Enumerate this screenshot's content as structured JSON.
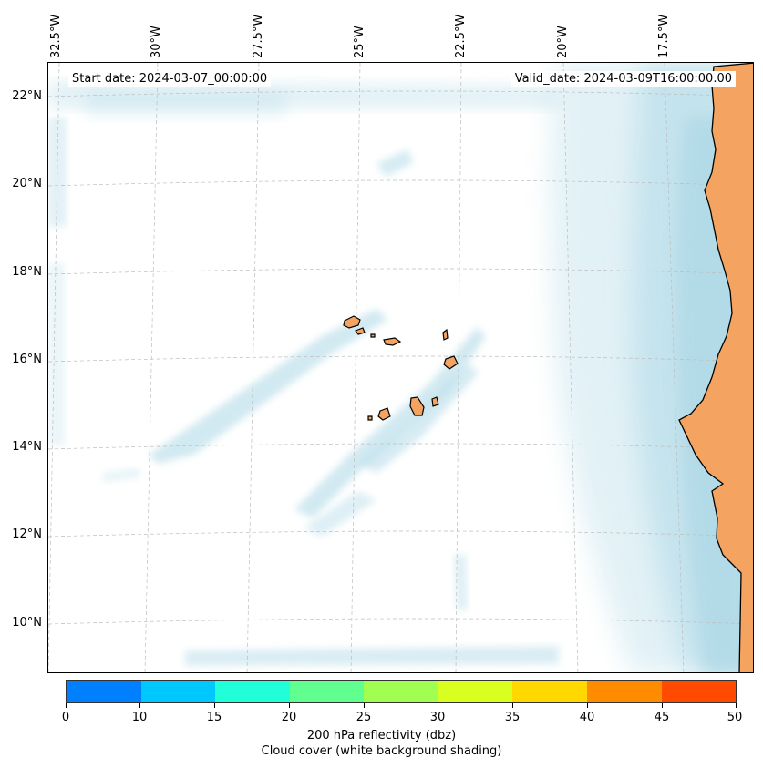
{
  "map": {
    "start_date": "Start date: 2024-03-07_00:00:00",
    "valid_date": "Valid_date: 2024-03-09T16:00:00.00",
    "lon_labels": [
      "32.5°W",
      "30°W",
      "27.5°W",
      "25°W",
      "22.5°W",
      "20°W",
      "17.5°W"
    ],
    "lat_labels": [
      "22°N",
      "20°N",
      "18°N",
      "16°N",
      "14°N",
      "12°N",
      "10°N"
    ],
    "land_color": "#f4a460",
    "cloud_color": "#add8e6",
    "coastline_color": "#000000",
    "gridlines": "dashed"
  },
  "colorbar": {
    "ticks": [
      "0",
      "10",
      "15",
      "20",
      "25",
      "30",
      "35",
      "40",
      "45",
      "50"
    ],
    "colors": [
      "#0080ff",
      "#00c8ff",
      "#20ffd8",
      "#60ff90",
      "#a0ff50",
      "#d8ff20",
      "#ffd800",
      "#ff8c00",
      "#ff4a00"
    ],
    "label_line1": "200 hPa reflectivity (dbz)",
    "label_line2": "Cloud cover (white background shading)"
  }
}
